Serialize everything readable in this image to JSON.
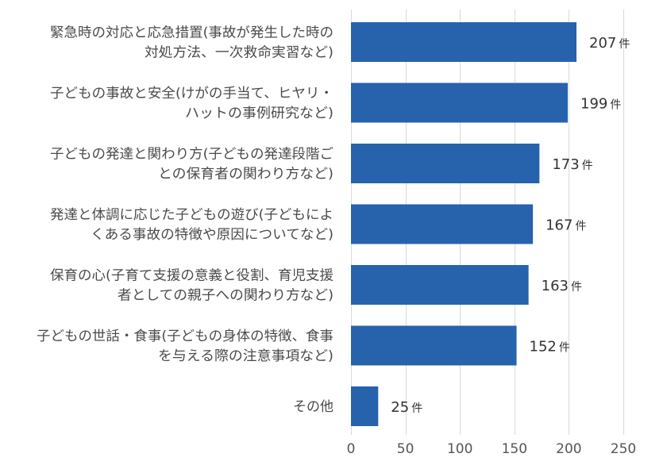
{
  "chart_data": {
    "type": "bar",
    "orientation": "horizontal",
    "categories": [
      [
        "緊急時の対応と応急措置(事故が発生した時の",
        "対処方法、一次救命実習など)"
      ],
      [
        "子どもの事故と安全(けがの手当て、ヒヤリ・",
        "ハットの事例研究など)"
      ],
      [
        "子どもの発達と関わり方(子どもの発達段階ご",
        "との保育者の関わり方など)"
      ],
      [
        "発達と体調に応じた子どもの遊び(子どもによ",
        "くある事故の特徴や原因についてなど)"
      ],
      [
        "保育の心(子育て支援の意義と役割、育児支援",
        "者としての親子への関わり方など)"
      ],
      [
        "子どもの世話・食事(子どもの身体の特徴、食事",
        "を与える際の注意事項など)"
      ],
      [
        "その他"
      ]
    ],
    "values": [
      207,
      199,
      173,
      167,
      163,
      152,
      25
    ],
    "value_unit": "件",
    "xlim": [
      0,
      250
    ],
    "xticks": [
      0,
      50,
      100,
      150,
      200,
      250
    ],
    "grid": "vertical",
    "bar_color": "#2762ad",
    "legend": "none"
  }
}
